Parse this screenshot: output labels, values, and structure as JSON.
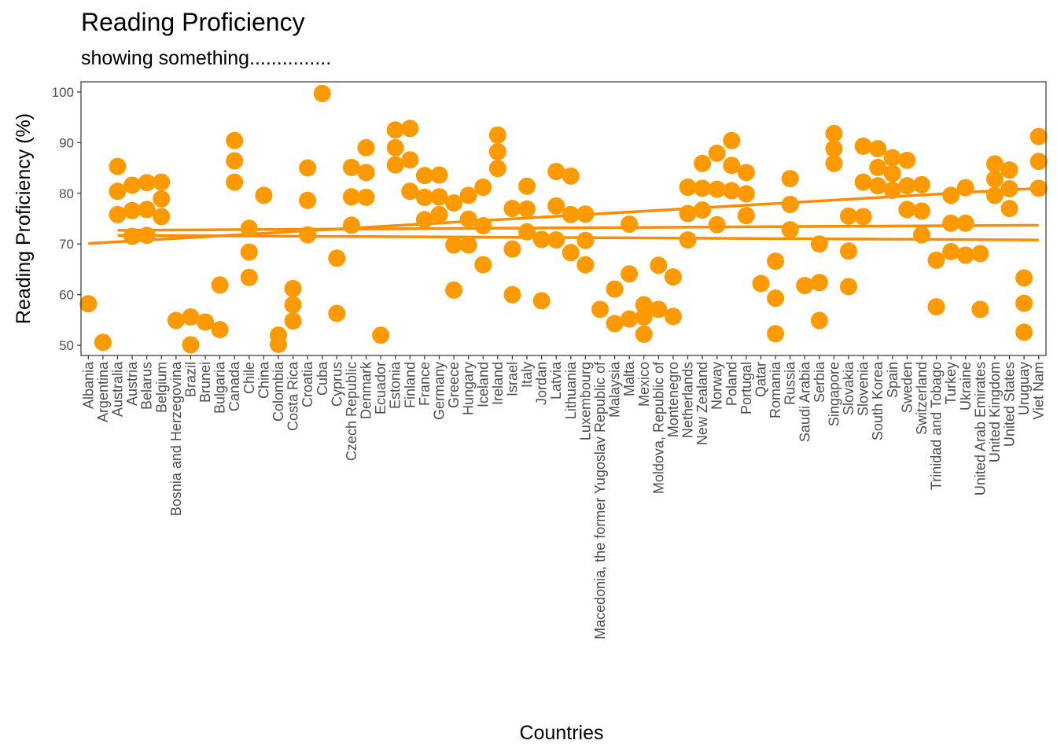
{
  "chart_data": {
    "type": "scatter",
    "title": "Reading Proficiency",
    "subtitle": "showing something...............",
    "xlabel": "Countries",
    "ylabel": "Reading Proficiency (%)",
    "ylim": [
      48,
      102
    ],
    "yticks": [
      50,
      60,
      70,
      80,
      90,
      100
    ],
    "grid": false,
    "legend": "none",
    "point_color": "#FF9900",
    "line_color": "#FF8C00",
    "categories": [
      "Albania",
      "Argentina",
      "Australia",
      "Austria",
      "Belarus",
      "Belgium",
      "Bosnia and Herzegovina",
      "Brazil",
      "Brunei",
      "Bulgaria",
      "Canada",
      "Chile",
      "China",
      "Colombia",
      "Costa Rica",
      "Croatia",
      "Cuba",
      "Cyprus",
      "Czech Republic",
      "Denmark",
      "Ecuador",
      "Estonia",
      "Finland",
      "France",
      "Germany",
      "Greece",
      "Hungary",
      "Iceland",
      "Ireland",
      "Israel",
      "Italy",
      "Jordan",
      "Latvia",
      "Lithuania",
      "Luxembourg",
      "Macedonia, the former Yugoslav Republic of",
      "Malaysia",
      "Malta",
      "Mexico",
      "Moldova, Republic of",
      "Montenegro",
      "Netherlands",
      "New Zealand",
      "Norway",
      "Poland",
      "Portugal",
      "Qatar",
      "Romania",
      "Russia",
      "Saudi Arabia",
      "Serbia",
      "Singapore",
      "Slovakia",
      "Slovenia",
      "South Korea",
      "Spain",
      "Sweden",
      "Switzerland",
      "Trinidad and Tobago",
      "Turkey",
      "Ukraine",
      "United Arab Emirates",
      "United Kingdom",
      "United States",
      "Uruguay",
      "Viet Nam"
    ],
    "points": [
      {
        "x": 0.5,
        "y": 58.2
      },
      {
        "x": 1.5,
        "y": 50.6
      },
      {
        "x": 2.5,
        "y": 85.3
      },
      {
        "x": 2.5,
        "y": 80.4
      },
      {
        "x": 2.5,
        "y": 75.8
      },
      {
        "x": 3.5,
        "y": 81.6
      },
      {
        "x": 3.5,
        "y": 76.6
      },
      {
        "x": 3.5,
        "y": 71.5
      },
      {
        "x": 4.5,
        "y": 82.1
      },
      {
        "x": 4.5,
        "y": 76.8
      },
      {
        "x": 4.5,
        "y": 71.7
      },
      {
        "x": 5.5,
        "y": 82.2
      },
      {
        "x": 5.5,
        "y": 78.9
      },
      {
        "x": 5.5,
        "y": 75.4
      },
      {
        "x": 6.5,
        "y": 54.9
      },
      {
        "x": 7.5,
        "y": 55.6
      },
      {
        "x": 7.5,
        "y": 50.1
      },
      {
        "x": 8.5,
        "y": 54.6
      },
      {
        "x": 9.5,
        "y": 61.9
      },
      {
        "x": 9.5,
        "y": 53.1
      },
      {
        "x": 10.5,
        "y": 90.4
      },
      {
        "x": 10.5,
        "y": 86.4
      },
      {
        "x": 10.5,
        "y": 82.2
      },
      {
        "x": 11.5,
        "y": 73.1
      },
      {
        "x": 11.5,
        "y": 68.4
      },
      {
        "x": 11.5,
        "y": 63.4
      },
      {
        "x": 12.5,
        "y": 79.6
      },
      {
        "x": 13.5,
        "y": 52.0
      },
      {
        "x": 13.5,
        "y": 50.2
      },
      {
        "x": 14.5,
        "y": 61.2
      },
      {
        "x": 14.5,
        "y": 58.0
      },
      {
        "x": 14.5,
        "y": 54.8
      },
      {
        "x": 15.5,
        "y": 85.0
      },
      {
        "x": 15.5,
        "y": 78.6
      },
      {
        "x": 15.5,
        "y": 71.8
      },
      {
        "x": 16.5,
        "y": 99.7
      },
      {
        "x": 17.5,
        "y": 67.2
      },
      {
        "x": 17.5,
        "y": 56.3
      },
      {
        "x": 18.5,
        "y": 85.1
      },
      {
        "x": 18.5,
        "y": 79.3
      },
      {
        "x": 18.5,
        "y": 73.7
      },
      {
        "x": 19.5,
        "y": 89.0
      },
      {
        "x": 19.5,
        "y": 84.1
      },
      {
        "x": 19.5,
        "y": 79.2
      },
      {
        "x": 20.5,
        "y": 52.0
      },
      {
        "x": 21.5,
        "y": 92.5
      },
      {
        "x": 21.5,
        "y": 89.0
      },
      {
        "x": 21.5,
        "y": 85.6
      },
      {
        "x": 22.5,
        "y": 92.8
      },
      {
        "x": 22.5,
        "y": 86.6
      },
      {
        "x": 22.5,
        "y": 80.4
      },
      {
        "x": 23.5,
        "y": 83.5
      },
      {
        "x": 23.5,
        "y": 79.2
      },
      {
        "x": 23.5,
        "y": 74.8
      },
      {
        "x": 24.5,
        "y": 83.6
      },
      {
        "x": 24.5,
        "y": 79.3
      },
      {
        "x": 24.5,
        "y": 75.8
      },
      {
        "x": 25.5,
        "y": 78.1
      },
      {
        "x": 25.5,
        "y": 69.8
      },
      {
        "x": 25.5,
        "y": 60.9
      },
      {
        "x": 26.5,
        "y": 79.6
      },
      {
        "x": 26.5,
        "y": 74.9
      },
      {
        "x": 26.5,
        "y": 69.8
      },
      {
        "x": 27.5,
        "y": 81.2
      },
      {
        "x": 27.5,
        "y": 73.6
      },
      {
        "x": 27.5,
        "y": 65.9
      },
      {
        "x": 28.5,
        "y": 91.5
      },
      {
        "x": 28.5,
        "y": 88.2
      },
      {
        "x": 28.5,
        "y": 84.9
      },
      {
        "x": 29.5,
        "y": 77.0
      },
      {
        "x": 29.5,
        "y": 69.0
      },
      {
        "x": 29.5,
        "y": 60.0
      },
      {
        "x": 30.5,
        "y": 81.4
      },
      {
        "x": 30.5,
        "y": 76.9
      },
      {
        "x": 30.5,
        "y": 72.4
      },
      {
        "x": 31.5,
        "y": 70.9
      },
      {
        "x": 31.5,
        "y": 58.8
      },
      {
        "x": 32.5,
        "y": 84.3
      },
      {
        "x": 32.5,
        "y": 77.5
      },
      {
        "x": 32.5,
        "y": 70.8
      },
      {
        "x": 33.5,
        "y": 83.4
      },
      {
        "x": 33.5,
        "y": 75.8
      },
      {
        "x": 33.5,
        "y": 68.3
      },
      {
        "x": 34.5,
        "y": 75.9
      },
      {
        "x": 34.5,
        "y": 70.7
      },
      {
        "x": 34.5,
        "y": 65.9
      },
      {
        "x": 35.5,
        "y": 57.1
      },
      {
        "x": 36.5,
        "y": 61.1
      },
      {
        "x": 36.5,
        "y": 54.3
      },
      {
        "x": 37.5,
        "y": 73.9
      },
      {
        "x": 37.5,
        "y": 64.1
      },
      {
        "x": 37.5,
        "y": 55.2
      },
      {
        "x": 38.5,
        "y": 58.0
      },
      {
        "x": 38.5,
        "y": 55.6
      },
      {
        "x": 38.5,
        "y": 52.2
      },
      {
        "x": 39.5,
        "y": 65.8
      },
      {
        "x": 39.5,
        "y": 57.1
      },
      {
        "x": 40.5,
        "y": 63.5
      },
      {
        "x": 40.5,
        "y": 55.7
      },
      {
        "x": 41.5,
        "y": 81.2
      },
      {
        "x": 41.5,
        "y": 76.0
      },
      {
        "x": 41.5,
        "y": 70.8
      },
      {
        "x": 42.5,
        "y": 85.9
      },
      {
        "x": 42.5,
        "y": 81.0
      },
      {
        "x": 42.5,
        "y": 76.7
      },
      {
        "x": 43.5,
        "y": 87.9
      },
      {
        "x": 43.5,
        "y": 80.8
      },
      {
        "x": 43.5,
        "y": 73.8
      },
      {
        "x": 44.5,
        "y": 90.4
      },
      {
        "x": 44.5,
        "y": 85.5
      },
      {
        "x": 44.5,
        "y": 80.5
      },
      {
        "x": 45.5,
        "y": 84.1
      },
      {
        "x": 45.5,
        "y": 79.9
      },
      {
        "x": 45.5,
        "y": 75.6
      },
      {
        "x": 46.5,
        "y": 62.2
      },
      {
        "x": 47.5,
        "y": 66.6
      },
      {
        "x": 47.5,
        "y": 59.3
      },
      {
        "x": 47.5,
        "y": 52.3
      },
      {
        "x": 48.5,
        "y": 82.9
      },
      {
        "x": 48.5,
        "y": 77.8
      },
      {
        "x": 48.5,
        "y": 72.8
      },
      {
        "x": 49.5,
        "y": 61.8
      },
      {
        "x": 50.5,
        "y": 70.0
      },
      {
        "x": 50.5,
        "y": 62.4
      },
      {
        "x": 50.5,
        "y": 54.9
      },
      {
        "x": 51.5,
        "y": 91.8
      },
      {
        "x": 51.5,
        "y": 88.8
      },
      {
        "x": 51.5,
        "y": 85.9
      },
      {
        "x": 52.5,
        "y": 75.5
      },
      {
        "x": 52.5,
        "y": 68.6
      },
      {
        "x": 52.5,
        "y": 61.6
      },
      {
        "x": 53.5,
        "y": 89.3
      },
      {
        "x": 53.5,
        "y": 82.2
      },
      {
        "x": 53.5,
        "y": 75.4
      },
      {
        "x": 54.5,
        "y": 88.8
      },
      {
        "x": 54.5,
        "y": 85.1
      },
      {
        "x": 54.5,
        "y": 81.5
      },
      {
        "x": 55.5,
        "y": 87.0
      },
      {
        "x": 55.5,
        "y": 83.9
      },
      {
        "x": 55.5,
        "y": 80.6
      },
      {
        "x": 56.5,
        "y": 86.5
      },
      {
        "x": 56.5,
        "y": 81.5
      },
      {
        "x": 56.5,
        "y": 76.8
      },
      {
        "x": 57.5,
        "y": 81.7
      },
      {
        "x": 57.5,
        "y": 76.5
      },
      {
        "x": 57.5,
        "y": 71.8
      },
      {
        "x": 58.5,
        "y": 66.8
      },
      {
        "x": 58.5,
        "y": 57.6
      },
      {
        "x": 59.5,
        "y": 79.6
      },
      {
        "x": 59.5,
        "y": 74.1
      },
      {
        "x": 59.5,
        "y": 68.5
      },
      {
        "x": 60.5,
        "y": 81.1
      },
      {
        "x": 60.5,
        "y": 74.1
      },
      {
        "x": 60.5,
        "y": 67.8
      },
      {
        "x": 61.5,
        "y": 68.1
      },
      {
        "x": 61.5,
        "y": 57.1
      },
      {
        "x": 62.5,
        "y": 85.8
      },
      {
        "x": 62.5,
        "y": 82.8
      },
      {
        "x": 62.5,
        "y": 79.6
      },
      {
        "x": 63.5,
        "y": 84.6
      },
      {
        "x": 63.5,
        "y": 80.9
      },
      {
        "x": 63.5,
        "y": 77.0
      },
      {
        "x": 64.5,
        "y": 63.3
      },
      {
        "x": 64.5,
        "y": 58.3
      },
      {
        "x": 64.5,
        "y": 52.6
      },
      {
        "x": 65.5,
        "y": 91.2
      },
      {
        "x": 65.5,
        "y": 86.3
      },
      {
        "x": 65.5,
        "y": 81.0
      }
    ],
    "trend_lines": [
      {
        "x_start": 0.5,
        "y_start": 70.1,
        "x_end": 65.5,
        "y_end": 81.0
      },
      {
        "x_start": 2.5,
        "y_start": 72.7,
        "x_end": 65.5,
        "y_end": 73.7
      },
      {
        "x_start": 2.5,
        "y_start": 71.7,
        "x_end": 65.5,
        "y_end": 70.8
      }
    ]
  }
}
